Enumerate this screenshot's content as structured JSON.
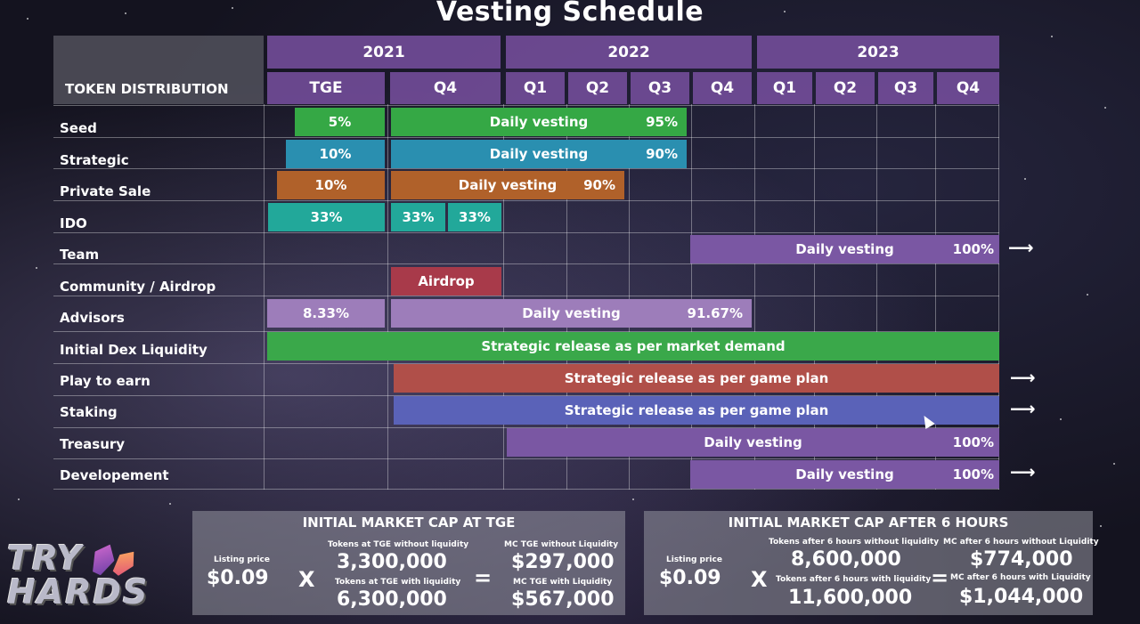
{
  "title": "Vesting Schedule",
  "header": {
    "main_label": "TOKEN DISTRIBUTION",
    "years": [
      "2021",
      "2022",
      "2023"
    ],
    "quarters": [
      "TGE",
      "Q4",
      "Q1",
      "Q2",
      "Q3",
      "Q4",
      "Q1",
      "Q2",
      "Q3",
      "Q4"
    ]
  },
  "rows": [
    "Seed",
    "Strategic",
    "Private Sale",
    "IDO",
    "Team",
    "Community / Airdrop",
    "Advisors",
    "Initial Dex Liquidity",
    "Play to earn",
    "Staking",
    "Treasury",
    "Developement"
  ],
  "bars": {
    "seed_tge": "5%",
    "seed_daily": "Daily vesting",
    "seed_pct": "95%",
    "strategic_tge": "10%",
    "strategic_daily": "Daily vesting",
    "strategic_pct": "90%",
    "private_tge": "10%",
    "private_daily": "Daily vesting",
    "private_pct": "90%",
    "ido_tge": "33%",
    "ido_q4a": "33%",
    "ido_q4b": "33%",
    "team_daily": "Daily vesting",
    "team_pct": "100%",
    "airdrop": "Airdrop",
    "advisors_tge": "8.33%",
    "advisors_daily": "Daily vesting",
    "advisors_pct": "91.67%",
    "liquidity": "Strategic release as per market demand",
    "p2e": "Strategic release as per game plan",
    "staking": "Strategic release as per game plan",
    "treasury_daily": "Daily vesting",
    "treasury_pct": "100%",
    "dev_daily": "Daily vesting",
    "dev_pct": "100%"
  },
  "colors": {
    "seed": "#35a845",
    "strategic": "#2a8fb0",
    "private": "#b0612a",
    "ido": "#22a89a",
    "team": "#7a57a3",
    "airdrop": "#a83a4a",
    "advisors": "#9d7dba",
    "liquidity": "#3aa84a",
    "p2e": "#b04f49",
    "staking": "#5a62b8",
    "header": "#7a52a3"
  },
  "panel_tge": {
    "title": "INITIAL MARKET CAP AT TGE",
    "listing_label": "Listing price",
    "listing_value": "$0.09",
    "times": "X",
    "equals": "=",
    "tokens_wo_label": "Tokens at TGE without liquidity",
    "tokens_wo_value": "3,300,000",
    "tokens_w_label": "Tokens at TGE with liquidity",
    "tokens_w_value": "6,300,000",
    "mc_wo_label": "MC TGE without Liquidity",
    "mc_wo_value": "$297,000",
    "mc_w_label": "MC TGE with Liquidity",
    "mc_w_value": "$567,000"
  },
  "panel_6h": {
    "title": "INITIAL MARKET CAP AFTER 6 HOURS",
    "listing_label": "Listing price",
    "listing_value": "$0.09",
    "times": "X",
    "equals": "=",
    "tokens_wo_label": "Tokens after 6 hours without liquidity",
    "tokens_wo_value": "8,600,000",
    "tokens_w_label": "Tokens after 6 hours with liquidity",
    "tokens_w_value": "11,600,000",
    "mc_wo_label": "MC after 6 hours without Liquidity",
    "mc_wo_value": "$774,000",
    "mc_w_label": "MC after 6 hours with Liquidity",
    "mc_w_value": "$1,044,000"
  },
  "logo": {
    "line1": "TRY",
    "line2": "HARDS"
  }
}
